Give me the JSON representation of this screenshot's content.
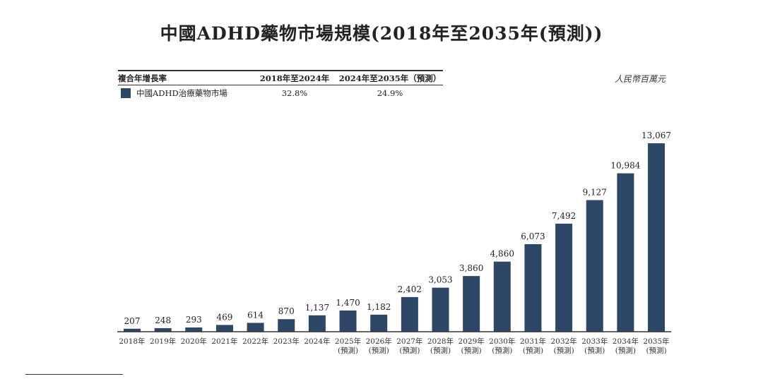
{
  "title": "中國ADHD藥物市場規模(2018年至2035年(預測))",
  "unit": "人民幣百萬元",
  "cagr_table": {
    "header": [
      "複合年增長率",
      "2018年至2024年",
      "2024年至2035年（預測）"
    ],
    "rows": [
      {
        "label": "中國ADHD治療藥物市場",
        "v1": "32.8%",
        "v2": "24.9%"
      }
    ]
  },
  "chart_data": {
    "type": "bar",
    "title": "中國ADHD藥物市場規模(2018年至2035年(預測))",
    "ylabel": "人民幣百萬元",
    "categories": [
      "2018年",
      "2019年",
      "2020年",
      "2021年",
      "2022年",
      "2023年",
      "2024年",
      "2025年",
      "2026年",
      "2027年",
      "2028年",
      "2029年",
      "2030年",
      "2031年",
      "2032年",
      "2033年",
      "2034年",
      "2035年"
    ],
    "forecast_label": "(預測)",
    "forecast_from_index": 7,
    "values": [
      207,
      248,
      293,
      469,
      614,
      870,
      1137,
      1470,
      1182,
      2402,
      3053,
      3860,
      4860,
      6073,
      7492,
      9127,
      10984,
      13067
    ],
    "value_labels": [
      "207",
      "248",
      "293",
      "469",
      "614",
      "870",
      "1,137",
      "1,470",
      "1,182",
      "2,402",
      "3,053",
      "3,860",
      "4,860",
      "6,073",
      "7,492",
      "9,127",
      "10,984",
      "13,067"
    ],
    "series": [
      {
        "name": "中國ADHD治療藥物市場",
        "color": "#2e4667"
      }
    ],
    "ylim": [
      0,
      13067
    ],
    "grid": false,
    "legend": "top-left"
  }
}
